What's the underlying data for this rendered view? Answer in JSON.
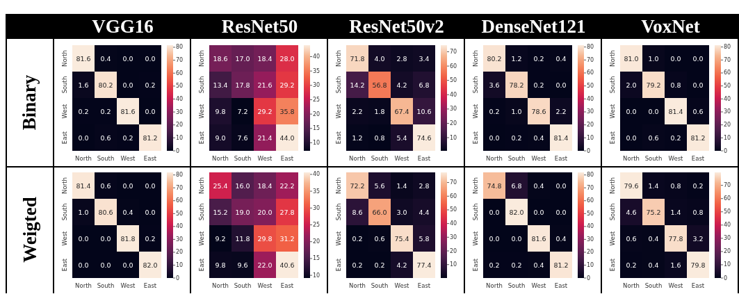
{
  "chart_data": [
    {
      "type": "heatmap",
      "title": "VGG16",
      "ylabel": "Binary",
      "categories": [
        "North",
        "South",
        "West",
        "East"
      ],
      "y_categories": [
        "North",
        "South",
        "West",
        "East"
      ],
      "cells": [
        [
          81.6,
          0.4,
          0.0,
          0.0
        ],
        [
          1.6,
          80.2,
          0.0,
          0.2
        ],
        [
          0.2,
          0.2,
          81.6,
          0.0
        ],
        [
          0.0,
          0.6,
          0.2,
          81.2
        ]
      ],
      "cell_labels": [
        [
          "81.6",
          "0.4",
          "0.0",
          "0.0"
        ],
        [
          "1.6",
          "80.2",
          "0.0",
          "0.2"
        ],
        [
          "0.2",
          "0.2",
          "81.6",
          "0.0"
        ],
        [
          "0.0",
          "0.6",
          "0.2",
          "81.2"
        ]
      ],
      "clim": [
        0,
        81.6
      ],
      "cticks": [
        0,
        10,
        20,
        30,
        40,
        50,
        60,
        70,
        80
      ],
      "data_labels": true
    },
    {
      "type": "heatmap",
      "title": "ResNet50",
      "categories": [
        "North",
        "South",
        "West",
        "East"
      ],
      "y_categories": [
        "North",
        "South",
        "West",
        "East"
      ],
      "cells": [
        [
          18.6,
          17.0,
          18.4,
          28.0
        ],
        [
          13.4,
          17.8,
          21.6,
          29.2
        ],
        [
          9.8,
          7.2,
          29.2,
          35.8
        ],
        [
          9.0,
          7.6,
          21.4,
          44.0
        ]
      ],
      "cell_labels": [
        [
          "18.6",
          "17.0",
          "18.4",
          "28.0"
        ],
        [
          "13.4",
          "17.8",
          "21.6",
          "29.2"
        ],
        [
          "9.8",
          "7.2",
          "29.2",
          "35.8"
        ],
        [
          "9.0",
          "7.6",
          "21.4",
          "44.0"
        ]
      ],
      "clim": [
        7.2,
        44.0
      ],
      "cticks": [
        10,
        15,
        20,
        25,
        30,
        35,
        40
      ],
      "data_labels": true
    },
    {
      "type": "heatmap",
      "title": "ResNet50v2",
      "categories": [
        "North",
        "South",
        "West",
        "East"
      ],
      "y_categories": [
        "North",
        "South",
        "West",
        "East"
      ],
      "cells": [
        [
          71.8,
          4.0,
          2.8,
          3.4
        ],
        [
          14.2,
          56.8,
          4.2,
          6.8
        ],
        [
          2.2,
          1.8,
          67.4,
          10.6
        ],
        [
          1.2,
          0.8,
          5.4,
          74.6
        ]
      ],
      "cell_labels": [
        [
          "71.8",
          "4.0",
          "2.8",
          "3.4"
        ],
        [
          "14.2",
          "56.8",
          "4.2",
          "6.8"
        ],
        [
          "2.2",
          "1.8",
          "67.4",
          "10.6"
        ],
        [
          "1.2",
          "0.8",
          "5.4",
          "74.6"
        ]
      ],
      "clim": [
        0.8,
        74.6
      ],
      "cticks": [
        10,
        20,
        30,
        40,
        50,
        60,
        70
      ],
      "data_labels": true
    },
    {
      "type": "heatmap",
      "title": "DenseNet121",
      "categories": [
        "North",
        "South",
        "West",
        "East"
      ],
      "y_categories": [
        "North",
        "South",
        "West",
        "East"
      ],
      "cells": [
        [
          80.2,
          1.2,
          0.2,
          0.4
        ],
        [
          3.6,
          78.2,
          0.2,
          0.0
        ],
        [
          0.2,
          1.0,
          78.6,
          2.2
        ],
        [
          0.0,
          0.2,
          0.4,
          81.4
        ]
      ],
      "cell_labels": [
        [
          "80.2",
          "1.2",
          "0.2",
          "0.4"
        ],
        [
          "3.6",
          "78.2",
          "0.2",
          "0.0"
        ],
        [
          "0.2",
          "1.0",
          "78.6",
          "2.2"
        ],
        [
          "0.0",
          "0.2",
          "0.4",
          "81.4"
        ]
      ],
      "clim": [
        0,
        81.4
      ],
      "cticks": [
        0,
        10,
        20,
        30,
        40,
        50,
        60,
        70,
        80
      ],
      "data_labels": true
    },
    {
      "type": "heatmap",
      "title": "VoxNet",
      "categories": [
        "North",
        "South",
        "West",
        "East"
      ],
      "y_categories": [
        "North",
        "South",
        "West",
        "East"
      ],
      "cells": [
        [
          81.0,
          1.0,
          0.0,
          0.0
        ],
        [
          2.0,
          79.2,
          0.8,
          0.0
        ],
        [
          0.0,
          0.0,
          81.4,
          0.6
        ],
        [
          0.0,
          0.6,
          0.2,
          81.2
        ]
      ],
      "cell_labels": [
        [
          "81.0",
          "1.0",
          "0.0",
          "0.0"
        ],
        [
          "2.0",
          "79.2",
          "0.8",
          "0.0"
        ],
        [
          "0.0",
          "0.0",
          "81.4",
          "0.6"
        ],
        [
          "0.0",
          "0.6",
          "0.2",
          "81.2"
        ]
      ],
      "clim": [
        0,
        81.4
      ],
      "cticks": [
        0,
        10,
        20,
        30,
        40,
        50,
        60,
        70,
        80
      ],
      "data_labels": true
    },
    {
      "type": "heatmap",
      "ylabel": "Weigted",
      "categories": [
        "North",
        "South",
        "West",
        "East"
      ],
      "y_categories": [
        "North",
        "South",
        "West",
        "East"
      ],
      "cells": [
        [
          81.4,
          0.6,
          0.0,
          0.0
        ],
        [
          1.0,
          80.6,
          0.4,
          0.0
        ],
        [
          0.0,
          0.0,
          81.8,
          0.2
        ],
        [
          0.0,
          0.0,
          0.0,
          82.0
        ]
      ],
      "cell_labels": [
        [
          "81.4",
          "0.6",
          "0.0",
          "0.0"
        ],
        [
          "1.0",
          "80.6",
          "0.4",
          "0.0"
        ],
        [
          "0.0",
          "0.0",
          "81.8",
          "0.2"
        ],
        [
          "0.0",
          "0.0",
          "0.0",
          "82.0"
        ]
      ],
      "clim": [
        0,
        82.0
      ],
      "cticks": [
        0,
        10,
        20,
        30,
        40,
        50,
        60,
        70,
        80
      ],
      "data_labels": true
    },
    {
      "type": "heatmap",
      "categories": [
        "North",
        "South",
        "West",
        "East"
      ],
      "y_categories": [
        "North",
        "South",
        "West",
        "East"
      ],
      "cells": [
        [
          25.4,
          16.0,
          18.4,
          22.2
        ],
        [
          15.2,
          19.0,
          20.0,
          27.8
        ],
        [
          9.2,
          11.8,
          29.8,
          31.2
        ],
        [
          9.8,
          9.6,
          22.0,
          40.6
        ]
      ],
      "cell_labels": [
        [
          "25.4",
          "16.0",
          "18.4",
          "22.2"
        ],
        [
          "15.2",
          "19.0",
          "20.0",
          "27.8"
        ],
        [
          "9.2",
          "11.8",
          "29.8",
          "31.2"
        ],
        [
          "9.8",
          "9.6",
          "22.0",
          "40.6"
        ]
      ],
      "clim": [
        9.2,
        40.6
      ],
      "cticks": [
        10,
        15,
        20,
        25,
        30,
        35,
        40
      ],
      "data_labels": true
    },
    {
      "type": "heatmap",
      "categories": [
        "North",
        "South",
        "West",
        "East"
      ],
      "y_categories": [
        "North",
        "South",
        "West",
        "East"
      ],
      "cells": [
        [
          72.2,
          5.6,
          1.4,
          2.8
        ],
        [
          8.6,
          66.0,
          3.0,
          4.4
        ],
        [
          0.2,
          0.6,
          75.4,
          5.8
        ],
        [
          0.2,
          0.2,
          4.2,
          77.4
        ]
      ],
      "cell_labels": [
        [
          "72.2",
          "5.6",
          "1.4",
          "2.8"
        ],
        [
          "8.6",
          "66.0",
          "3.0",
          "4.4"
        ],
        [
          "0.2",
          "0.6",
          "75.4",
          "5.8"
        ],
        [
          "0.2",
          "0.2",
          "4.2",
          "77.4"
        ]
      ],
      "clim": [
        0.2,
        77.4
      ],
      "cticks": [
        10,
        20,
        30,
        40,
        50,
        60,
        70
      ],
      "data_labels": true
    },
    {
      "type": "heatmap",
      "categories": [
        "North",
        "South",
        "West",
        "East"
      ],
      "y_categories": [
        "North",
        "South",
        "West",
        "East"
      ],
      "cells": [
        [
          74.8,
          6.8,
          0.4,
          0.0
        ],
        [
          0.0,
          82.0,
          0.0,
          0.0
        ],
        [
          0.0,
          0.0,
          81.6,
          0.4
        ],
        [
          0.2,
          0.2,
          0.4,
          81.2
        ]
      ],
      "cell_labels": [
        [
          "74.8",
          "6.8",
          "0.4",
          "0.0"
        ],
        [
          "0.0",
          "82.0",
          "0.0",
          "0.0"
        ],
        [
          "0.0",
          "0.0",
          "81.6",
          "0.4"
        ],
        [
          "0.2",
          "0.2",
          "0.4",
          "81.2"
        ]
      ],
      "clim": [
        0,
        82.0
      ],
      "cticks": [
        0,
        10,
        20,
        30,
        40,
        50,
        60,
        70,
        80
      ],
      "data_labels": true
    },
    {
      "type": "heatmap",
      "categories": [
        "North",
        "South",
        "West",
        "East"
      ],
      "y_categories": [
        "North",
        "South",
        "West",
        "East"
      ],
      "cells": [
        [
          79.6,
          1.4,
          0.8,
          0.2
        ],
        [
          4.6,
          75.2,
          1.4,
          0.8
        ],
        [
          0.6,
          0.4,
          77.8,
          3.2
        ],
        [
          0.2,
          0.4,
          1.6,
          79.8
        ]
      ],
      "cell_labels": [
        [
          "79.6",
          "1.4",
          "0.8",
          "0.2"
        ],
        [
          "4.6",
          "75.2",
          "1.4",
          "0.8"
        ],
        [
          "0.6",
          "0.4",
          "77.8",
          "3.2"
        ],
        [
          "0.2",
          "0.4",
          "1.6",
          "79.8"
        ]
      ],
      "clim": [
        0,
        79.8
      ],
      "cticks": [
        0,
        10,
        20,
        30,
        40,
        50,
        60,
        70
      ],
      "data_labels": true
    }
  ]
}
